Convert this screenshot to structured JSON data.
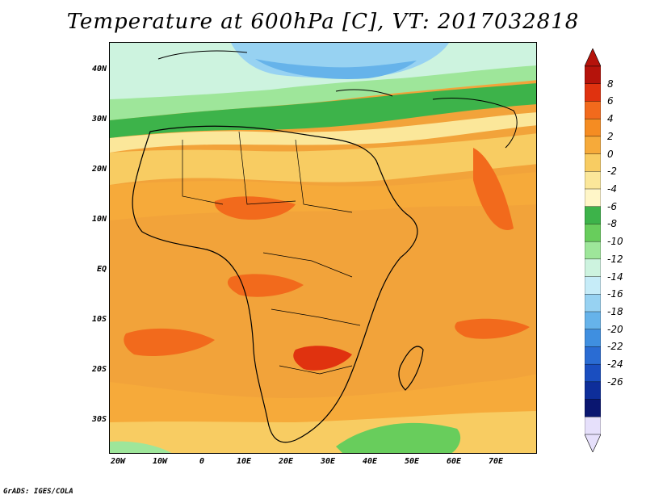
{
  "title": "Temperature at 600hPa [C], VT: 2017032818",
  "credit": "GrADS: IGES/COLA",
  "axes": {
    "lat_labels": [
      "40N",
      "30N",
      "20N",
      "10N",
      "EQ",
      "10S",
      "20S",
      "30S"
    ],
    "lon_labels": [
      "20W",
      "10W",
      "0",
      "10E",
      "20E",
      "30E",
      "40E",
      "50E",
      "60E",
      "70E"
    ]
  },
  "colorbar": {
    "labels": [
      "8",
      "6",
      "4",
      "2",
      "0",
      "-2",
      "-4",
      "-6",
      "-8",
      "-10",
      "-12",
      "-14",
      "-16",
      "-18",
      "-20",
      "-22",
      "-24",
      "-26"
    ],
    "colors": [
      "#b5130b",
      "#e0320f",
      "#f26a1c",
      "#f58c22",
      "#f6aa3a",
      "#f8cc62",
      "#fbe79a",
      "#fff6c8",
      "#3db34a",
      "#68cd5c",
      "#9ee69a",
      "#cdf3df",
      "#c6ecf8",
      "#97d2f2",
      "#66b3ea",
      "#3f8fe0",
      "#2a6cd3",
      "#1a4ec0",
      "#0e2e9a",
      "#0a1670",
      "#e6e0fb"
    ],
    "top_arrow_color": "#b5130b",
    "bottom_arrow_color": "#e6e0fb"
  }
}
